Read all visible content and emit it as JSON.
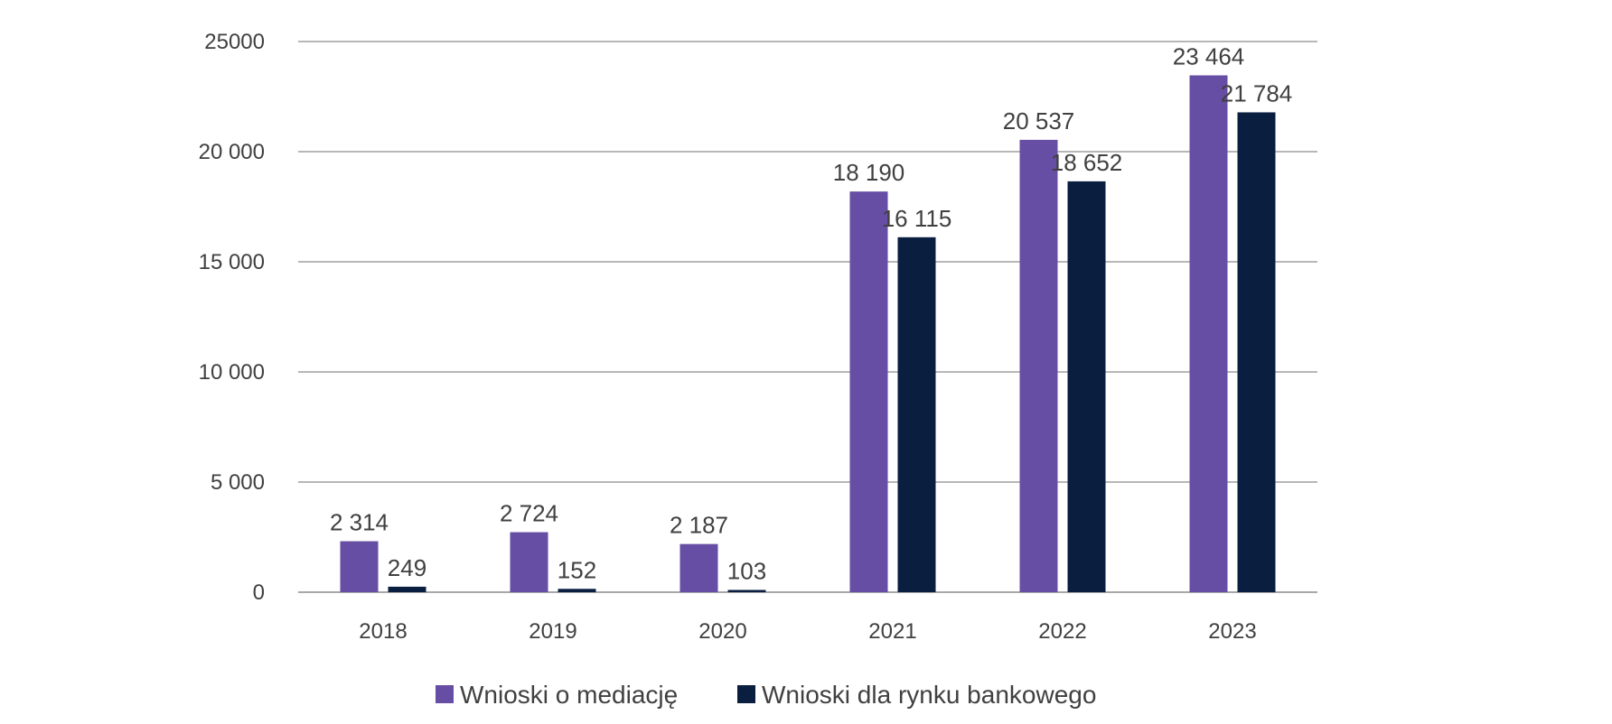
{
  "chart_data": {
    "type": "bar",
    "categories": [
      "2018",
      "2019",
      "2020",
      "2021",
      "2022",
      "2023"
    ],
    "series": [
      {
        "name": "Wnioski o mediację",
        "color": "#654ea3",
        "values": [
          2314,
          2724,
          2187,
          18190,
          20537,
          23464
        ],
        "labels": [
          "2 314",
          "2 724",
          "2 187",
          "18 190",
          "20 537",
          "23 464"
        ]
      },
      {
        "name": "Wnioski dla rynku bankowego",
        "color": "#0a1e40",
        "values": [
          249,
          152,
          103,
          16115,
          18652,
          21784
        ],
        "labels": [
          "249",
          "152",
          "103",
          "16 115",
          "18 652",
          "21 784"
        ]
      }
    ],
    "ylim": [
      0,
      25000
    ],
    "yticks": [
      0,
      5000,
      10000,
      15000,
      20000,
      25000
    ],
    "ytick_labels": [
      "0",
      "5 000",
      "10 000",
      "15 000",
      "20 000",
      "25000"
    ],
    "grid": true,
    "legend_position": "bottom",
    "title": "",
    "xlabel": "",
    "ylabel": ""
  }
}
